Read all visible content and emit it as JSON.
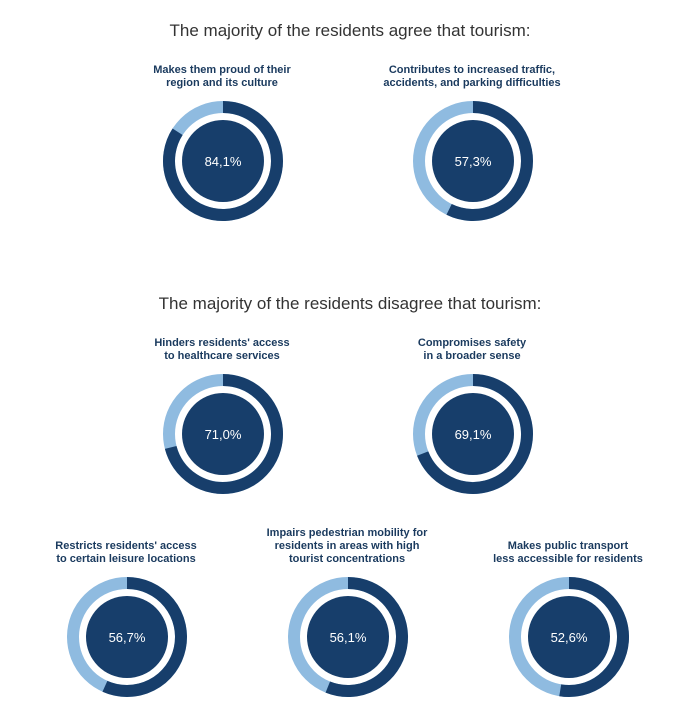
{
  "headings": {
    "agree": "The majority of the residents agree that tourism:",
    "disagree": "The majority of the residents disagree that tourism:"
  },
  "colors": {
    "dark": "#173e6b",
    "light": "#8fbbe0",
    "text": "#1a3a5e"
  },
  "chart_data": [
    {
      "type": "pie",
      "group": "agree",
      "label_lines": [
        "Makes them proud of their",
        "region and its culture"
      ],
      "value": 84.1,
      "value_label": "84,1%"
    },
    {
      "type": "pie",
      "group": "agree",
      "label_lines": [
        "Contributes to increased traffic,",
        "accidents, and parking difficulties"
      ],
      "value": 57.3,
      "value_label": "57,3%"
    },
    {
      "type": "pie",
      "group": "disagree",
      "label_lines": [
        "Hinders residents' access",
        "to healthcare services"
      ],
      "value": 71.0,
      "value_label": "71,0%"
    },
    {
      "type": "pie",
      "group": "disagree",
      "label_lines": [
        "Compromises safety",
        "in a broader sense"
      ],
      "value": 69.1,
      "value_label": "69,1%"
    },
    {
      "type": "pie",
      "group": "disagree",
      "label_lines": [
        "Restricts residents' access",
        "to certain leisure locations"
      ],
      "value": 56.7,
      "value_label": "56,7%"
    },
    {
      "type": "pie",
      "group": "disagree",
      "label_lines": [
        "Impairs pedestrian mobility for",
        "residents in areas with high",
        "tourist concentrations"
      ],
      "value": 56.1,
      "value_label": "56,1%"
    },
    {
      "type": "pie",
      "group": "disagree",
      "label_lines": [
        "Makes public transport",
        "less accessible for residents"
      ],
      "value": 52.6,
      "value_label": "52,6%"
    }
  ]
}
